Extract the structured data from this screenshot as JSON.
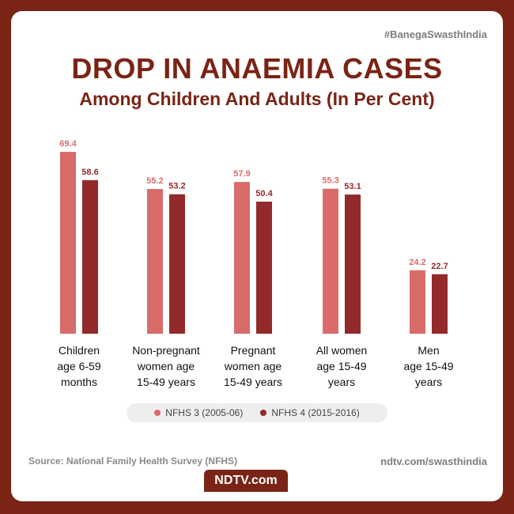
{
  "hashtag": "#BanegaSwasthIndia",
  "header": {
    "title": "DROP IN ANAEMIA CASES",
    "subtitle": "Among Children And Adults (In Per Cent)"
  },
  "colors": {
    "background": "#7a2416",
    "series1": "#d96b6b",
    "series2": "#922a2b",
    "title": "#7a2416"
  },
  "chart_data": {
    "type": "bar",
    "title": "DROP IN ANAEMIA CASES",
    "subtitle": "Among Children And Adults (In Per Cent)",
    "categories": [
      [
        "Children",
        "age 6-59",
        "months"
      ],
      [
        "Non-pregnant",
        "women age",
        "15-49 years"
      ],
      [
        "Pregnant",
        "women age",
        "15-49 years"
      ],
      [
        "All women",
        "age 15-49",
        "years"
      ],
      [
        "Men",
        "age 15-49",
        "years"
      ]
    ],
    "series": [
      {
        "name": "NFHS 3 (2005-06)",
        "values": [
          69.4,
          55.2,
          57.9,
          55.3,
          24.2
        ]
      },
      {
        "name": "NFHS 4 (2015-2016)",
        "values": [
          58.6,
          53.2,
          50.4,
          53.1,
          22.7
        ]
      }
    ],
    "ylim": [
      0,
      69.4
    ],
    "grid": false,
    "legend": "bottom"
  },
  "legend": {
    "items": [
      "NFHS 3 (2005-06)",
      "NFHS 4 (2015-2016)"
    ]
  },
  "footer": {
    "source": "Source: National Family Health Survey (NFHS)",
    "site": "ndtv.com/swasthindia",
    "brand": "NDTV.com"
  }
}
